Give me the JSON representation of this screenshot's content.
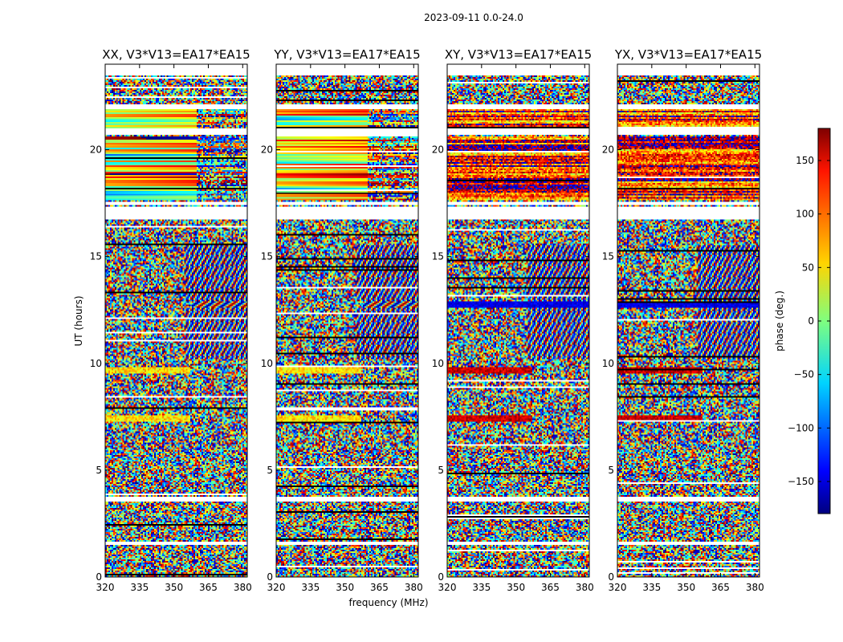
{
  "chart_data": {
    "type": "heatmap",
    "suptitle": "2023-09-11 0.0-24.0",
    "xlabel": "frequency (MHz)",
    "ylabel": "UT (hours)",
    "xlim": [
      320,
      382
    ],
    "ylim": [
      0,
      24
    ],
    "xticks": [
      320,
      335,
      350,
      365,
      380
    ],
    "yticks": [
      0,
      5,
      10,
      15,
      20
    ],
    "panels": [
      {
        "title": "XX, V3*V13=EA17*EA15",
        "pol": "XX"
      },
      {
        "title": "YY, V3*V13=EA17*EA15",
        "pol": "YY"
      },
      {
        "title": "XY, V3*V13=EA17*EA15",
        "pol": "XY"
      },
      {
        "title": "YX, V3*V13=EA17*EA15",
        "pol": "YX"
      }
    ],
    "colorbar": {
      "label": "phase (deg.)",
      "range": [
        -180,
        180
      ],
      "ticks": [
        150,
        100,
        50,
        0,
        -50,
        -100,
        -150
      ],
      "tick_labels": [
        "150",
        "100",
        "50",
        "0",
        "−50",
        "−100",
        "−150"
      ],
      "colormap": "jet"
    },
    "flagged_gaps_hours": [
      [
        3.5,
        3.75
      ],
      [
        1.5,
        1.65
      ],
      [
        16.7,
        17.3
      ],
      [
        20.7,
        21.0
      ],
      [
        21.9,
        22.1
      ],
      [
        17.4,
        17.55
      ],
      [
        23.5,
        24.0
      ]
    ],
    "coherent_bands_hours": [
      {
        "range": [
          21.0,
          21.9
        ],
        "note": "smooth phase, strong in XX/YY"
      },
      {
        "range": [
          17.6,
          20.6
        ],
        "note": "smooth phase, strong in XX/YY"
      },
      {
        "range": [
          7.3,
          7.6
        ],
        "note": "bright stripe"
      },
      {
        "range": [
          9.5,
          9.8
        ],
        "note": "bright stripe"
      },
      {
        "range": [
          12.6,
          12.9
        ],
        "note": "dark stripe"
      }
    ]
  }
}
